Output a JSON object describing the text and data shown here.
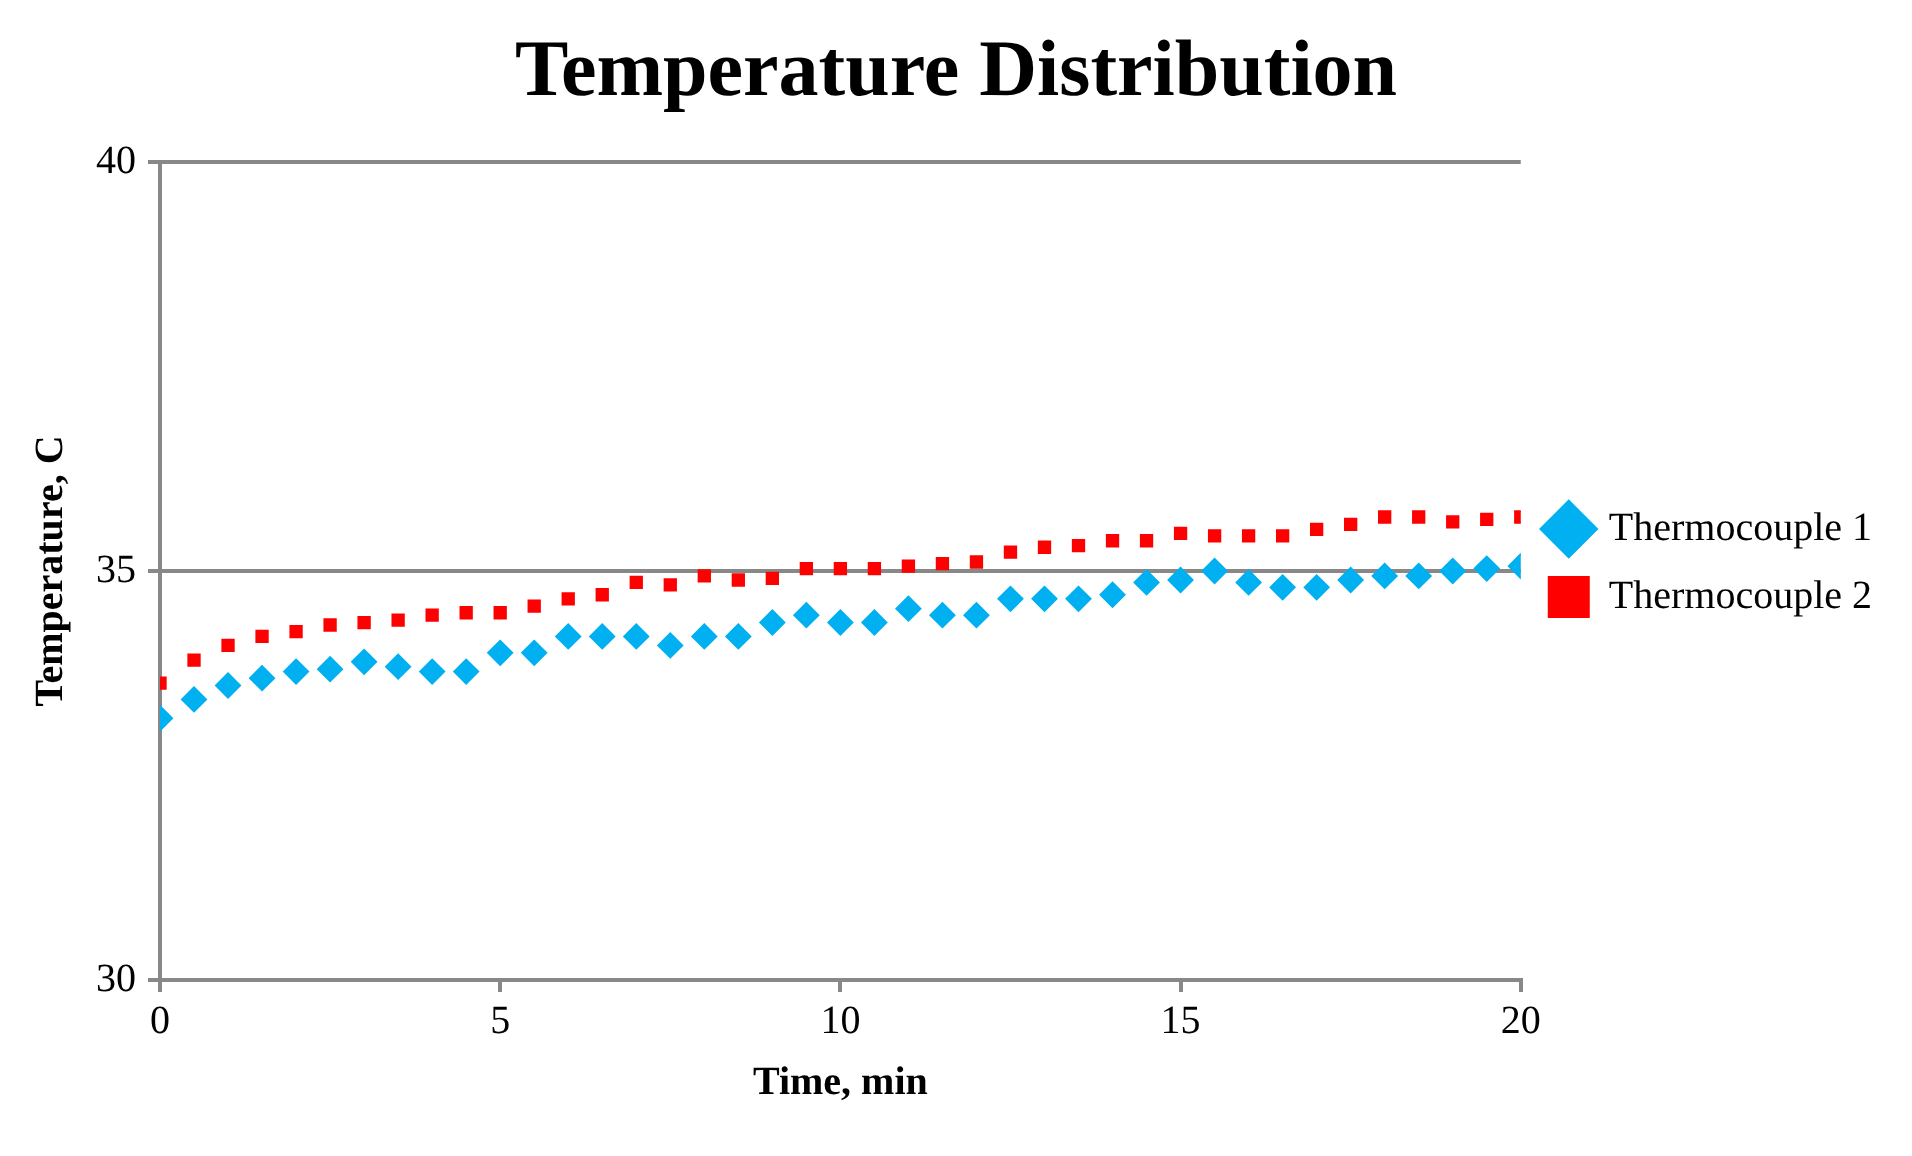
{
  "chart_data": {
    "type": "scatter",
    "title": "Temperature Distribution",
    "xlabel": "Time, min",
    "ylabel": "Temperature, C",
    "x": [
      0,
      0.5,
      1,
      1.5,
      2,
      2.5,
      3,
      3.5,
      4,
      4.5,
      5,
      5.5,
      6,
      6.5,
      7,
      7.5,
      8,
      8.5,
      9,
      9.5,
      10,
      10.5,
      11,
      11.5,
      12,
      12.5,
      13,
      13.5,
      14,
      14.5,
      15,
      15.5,
      16,
      16.5,
      17,
      17.5,
      18,
      18.5,
      19,
      19.5,
      20
    ],
    "series": [
      {
        "name": "Thermocouple 1",
        "color": "#00b0f0",
        "marker": "diamond",
        "values": [
          33.2,
          33.43,
          33.6,
          33.69,
          33.77,
          33.8,
          33.89,
          33.83,
          33.77,
          33.77,
          34.0,
          34.0,
          34.2,
          34.2,
          34.2,
          34.09,
          34.2,
          34.2,
          34.37,
          34.46,
          34.37,
          34.37,
          34.54,
          34.46,
          34.46,
          34.66,
          34.66,
          34.66,
          34.71,
          34.86,
          34.89,
          35.0,
          34.86,
          34.8,
          34.8,
          34.89,
          34.94,
          34.94,
          35.0,
          35.03,
          35.06
        ]
      },
      {
        "name": "Thermocouple 2",
        "color": "#ff0000",
        "marker": "square",
        "values": [
          33.63,
          33.91,
          34.09,
          34.2,
          34.26,
          34.34,
          34.37,
          34.4,
          34.46,
          34.49,
          34.49,
          34.57,
          34.66,
          34.71,
          34.86,
          34.83,
          34.94,
          34.89,
          34.91,
          35.03,
          35.03,
          35.03,
          35.06,
          35.09,
          35.11,
          35.23,
          35.29,
          35.31,
          35.37,
          35.37,
          35.46,
          35.43,
          35.43,
          35.43,
          35.51,
          35.57,
          35.66,
          35.66,
          35.6,
          35.63,
          35.66
        ]
      }
    ],
    "xlim": [
      0,
      20
    ],
    "xticks": [
      0,
      5,
      10,
      15,
      20
    ],
    "ylim": [
      30,
      40
    ],
    "yticks": [
      30,
      35,
      40
    ],
    "grid": "y",
    "legend": "right"
  }
}
